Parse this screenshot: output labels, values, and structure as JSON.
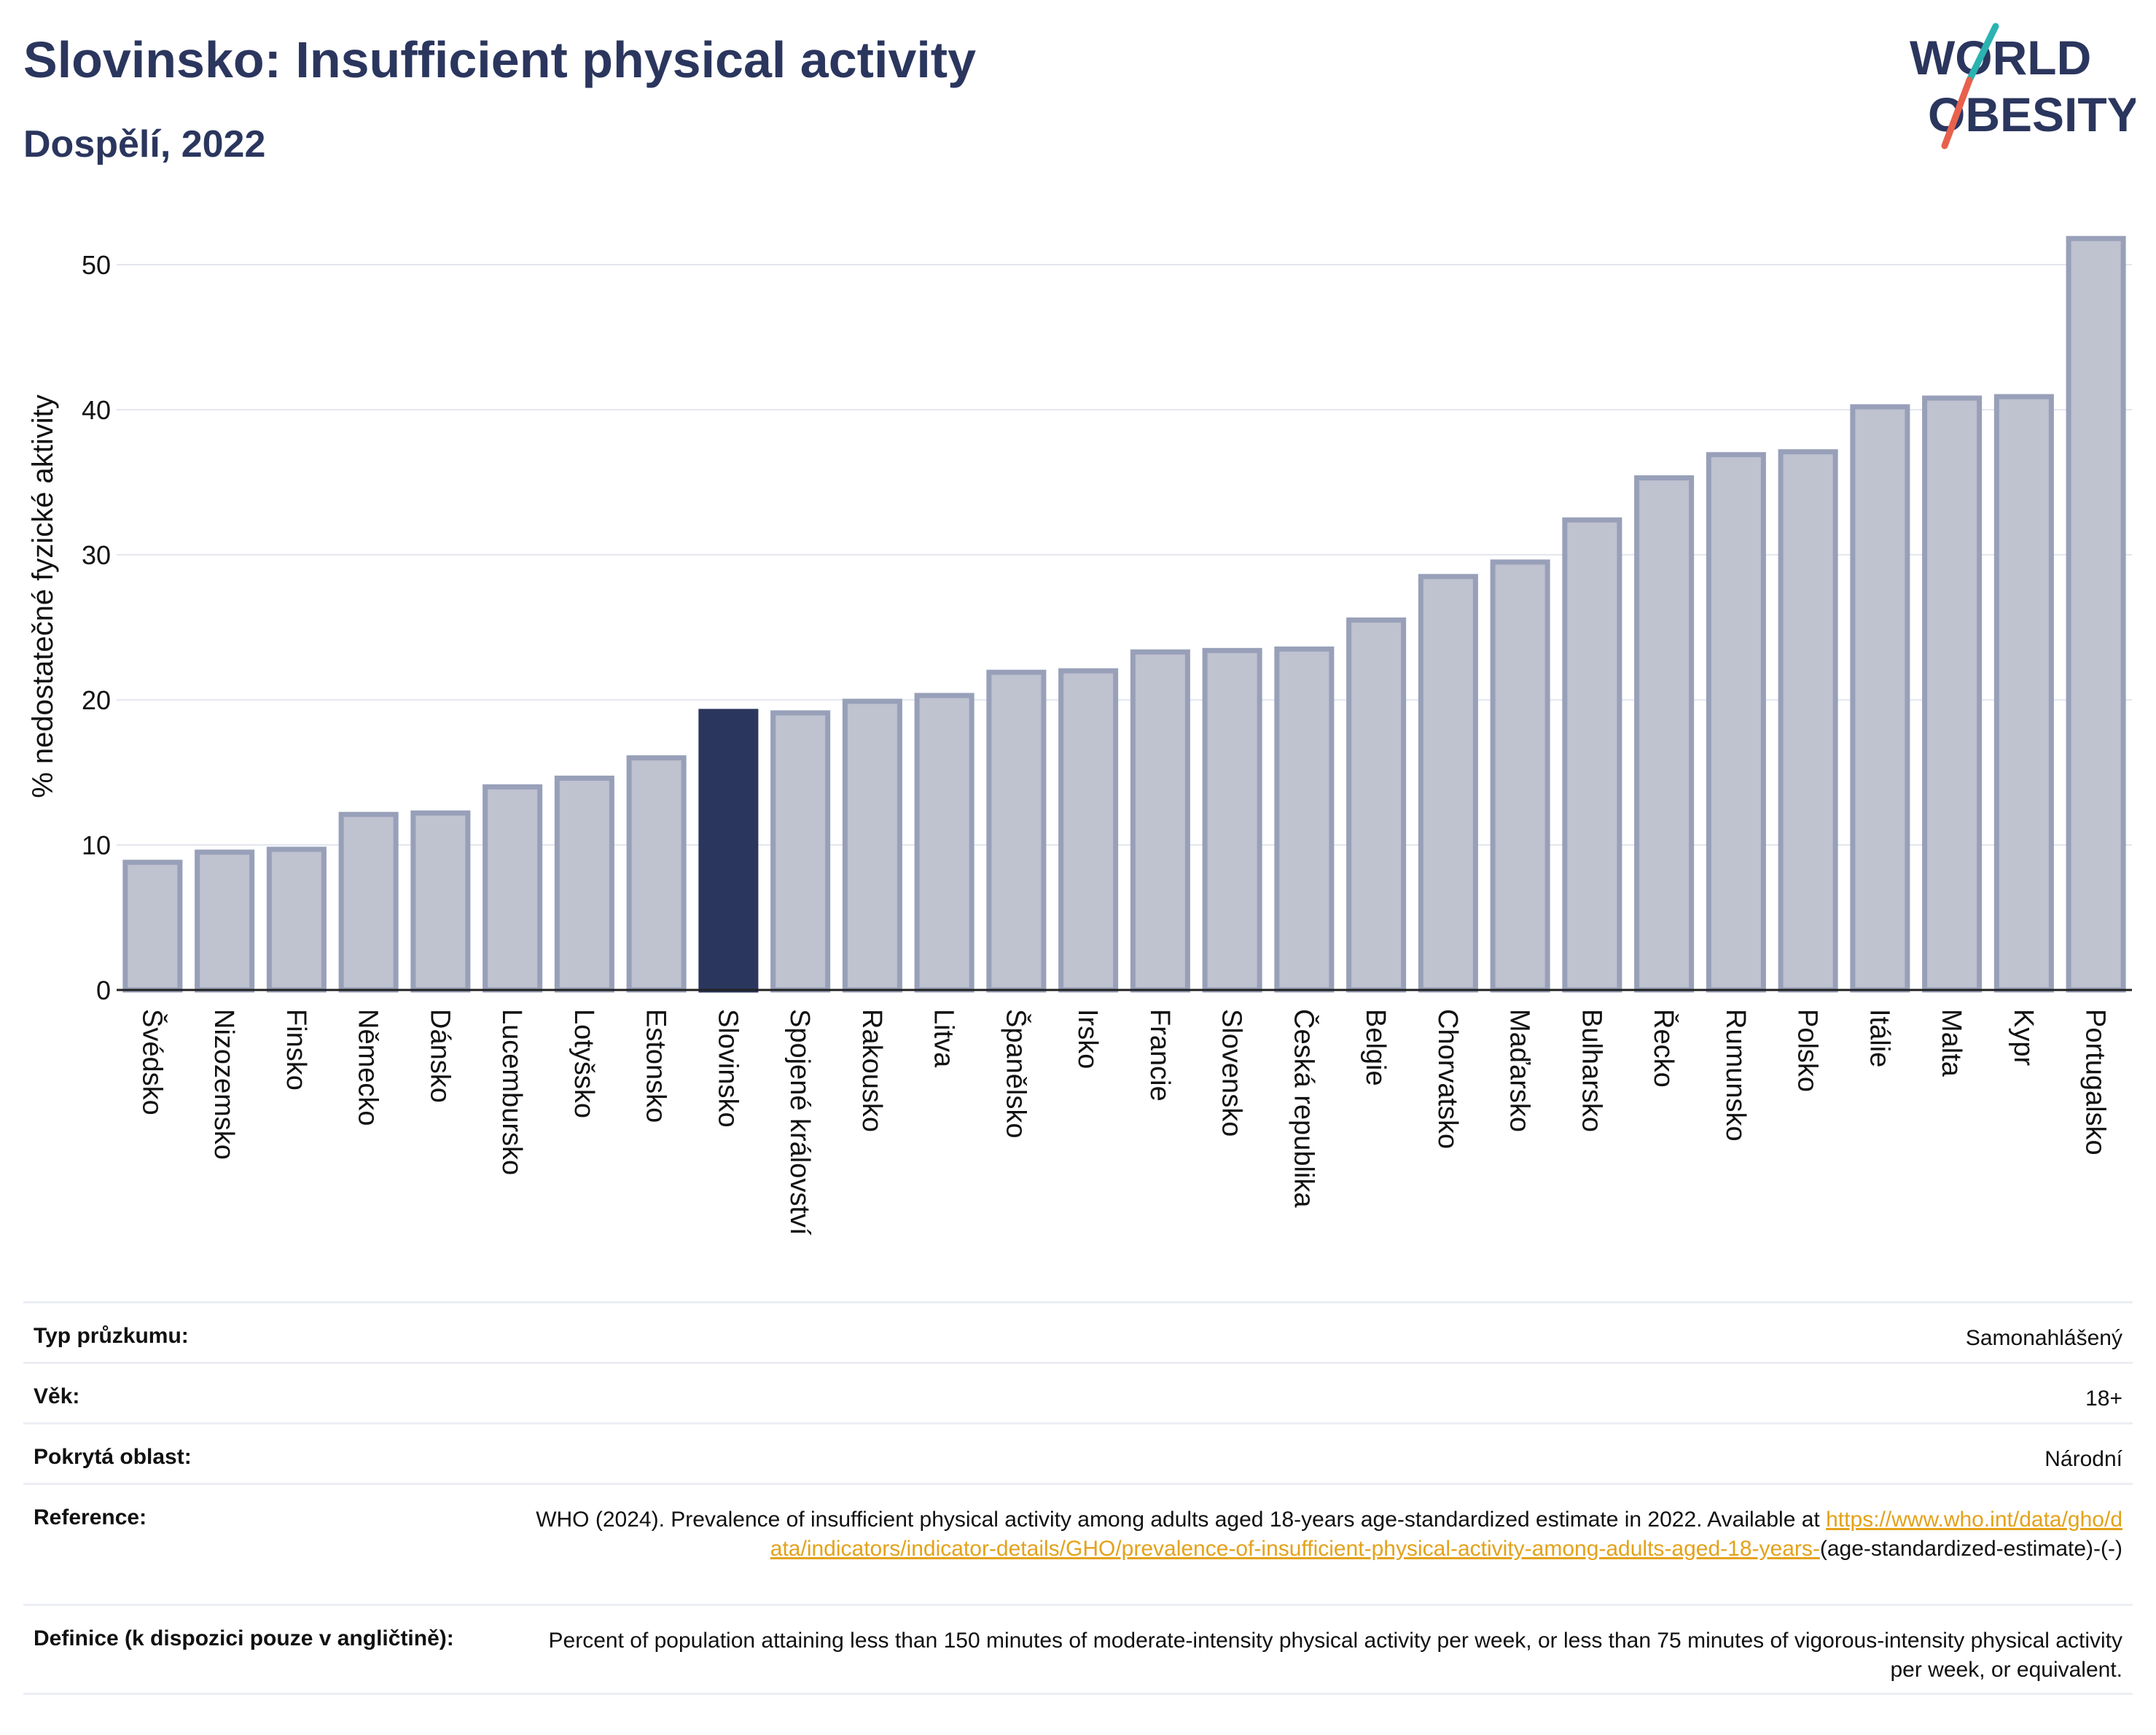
{
  "header": {
    "title": "Slovinsko: Insufficient physical activity",
    "subtitle": "Dospělí, 2022"
  },
  "logo": {
    "line1": "WORLD",
    "line2": "OBESITY",
    "colors": {
      "text": "#2b365e",
      "slash_top": "#2bb3b1",
      "slash_bottom": "#e8614d"
    }
  },
  "colors": {
    "bar": "#bfc2cf",
    "bar_outline": "#98a0b9",
    "highlight": "#2b365e",
    "grid": "#e4e6ee",
    "link": "#e3a21a"
  },
  "chart_data": {
    "type": "bar",
    "title": "Slovinsko: Insufficient physical activity",
    "subtitle": "Dospělí, 2022",
    "ylabel": "% nedostatečné fyzické aktivity",
    "xlabel": "",
    "ylim": [
      0,
      52
    ],
    "yticks": [
      0,
      10,
      20,
      30,
      40,
      50
    ],
    "grid": true,
    "highlight": "Slovinsko",
    "categories": [
      "Švédsko",
      "Nizozemsko",
      "Finsko",
      "Německo",
      "Dánsko",
      "Lucembursko",
      "Lotyšsko",
      "Estonsko",
      "Slovinsko",
      "Spojené království",
      "Rakousko",
      "Litva",
      "Španělsko",
      "Irsko",
      "Francie",
      "Slovensko",
      "Česká republika",
      "Belgie",
      "Chorvatsko",
      "Maďarsko",
      "Bulharsko",
      "Řecko",
      "Rumunsko",
      "Polsko",
      "Itálie",
      "Malta",
      "Kypr",
      "Portugalsko"
    ],
    "values": [
      8.8,
      9.5,
      9.7,
      12.1,
      12.2,
      14.0,
      14.6,
      16.0,
      19.2,
      19.1,
      19.9,
      20.3,
      21.9,
      22.0,
      23.3,
      23.4,
      23.5,
      25.5,
      28.5,
      29.5,
      32.4,
      35.3,
      36.9,
      37.1,
      40.2,
      40.8,
      40.9,
      51.8
    ]
  },
  "info": {
    "rows": [
      {
        "label": "Typ průzkumu:",
        "value": "Samonahlášený"
      },
      {
        "label": "Věk:",
        "value": "18+"
      },
      {
        "label": "Pokrytá oblast:",
        "value": "Národní"
      }
    ],
    "reference": {
      "label": "Reference:",
      "text": "WHO (2024). Prevalence of insufficient physical activity among adults aged 18-years age-standardized estimate in 2022. Available at",
      "link": "https://www.who.int/data/gho/data/indicators/indicator-details/GHO/prevalence-of-insufficient-physical-activity-among-adults-aged-18-years-",
      "suffix": "(age-standardized-estimate)-(-)"
    },
    "definition": {
      "label": "Definice (k dispozici pouze v angličtině):",
      "text": "Percent of population attaining less than 150 minutes of moderate-intensity physical activity per week, or less than 75 minutes of vigorous-intensity physical activity per week, or equivalent."
    }
  }
}
